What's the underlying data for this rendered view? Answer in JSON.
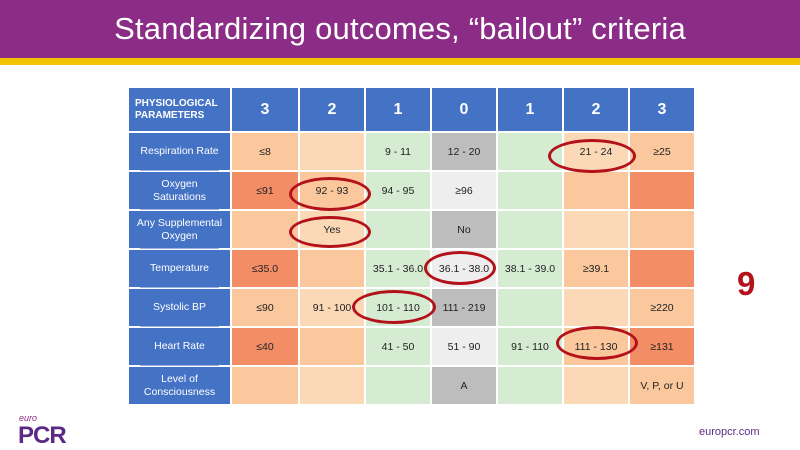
{
  "slide": {
    "title": "Standardizing outcomes, “bailout” criteria",
    "score": "9",
    "footer_logo_small": "euro",
    "footer_logo_main": "PCR",
    "footer_website": "europcr.com"
  },
  "table": {
    "header": {
      "param_line1": "PHYSIOLOGICAL",
      "param_line2": "PARAMETERS",
      "scores": [
        "3",
        "2",
        "1",
        "0",
        "1",
        "2",
        "3"
      ]
    },
    "rows": [
      {
        "label_line1": "Respiration Rate",
        "label_line2": "",
        "cells": [
          "≤8",
          "",
          "9 - 11",
          "12 - 20",
          "",
          "21 - 24",
          "≥25"
        ]
      },
      {
        "label_line1": "Oxygen",
        "label_line2": "Saturations",
        "cells": [
          "≤91",
          "92 - 93",
          "94 - 95",
          "≥96",
          "",
          "",
          ""
        ]
      },
      {
        "label_line1": "Any Supplemental",
        "label_line2": "Oxygen",
        "cells": [
          "",
          "Yes",
          "",
          "No",
          "",
          "",
          ""
        ]
      },
      {
        "label_line1": "Temperature",
        "label_line2": "",
        "cells": [
          "≤35.0",
          "",
          "35.1 - 36.0",
          "36.1 - 38.0",
          "38.1 - 39.0",
          "≥39.1",
          ""
        ]
      },
      {
        "label_line1": "Systolic BP",
        "label_line2": "",
        "cells": [
          "≤90",
          "91 - 100",
          "101 - 110",
          "111 - 219",
          "",
          "",
          "≥220"
        ]
      },
      {
        "label_line1": "Heart Rate",
        "label_line2": "",
        "cells": [
          "≤40",
          "",
          "41 - 50",
          "51 - 90",
          "91 - 110",
          "111 - 130",
          "≥131"
        ]
      },
      {
        "label_line1": "Level of",
        "label_line2": "Consciousness",
        "cells": [
          "",
          "",
          "",
          "A",
          "",
          "",
          "V, P, or U"
        ]
      }
    ]
  },
  "colors": {
    "title_bar": "#8b2c86",
    "title_underline": "#f2c300",
    "header_blue": "#4472c4",
    "ring_red": "#b3121b"
  }
}
